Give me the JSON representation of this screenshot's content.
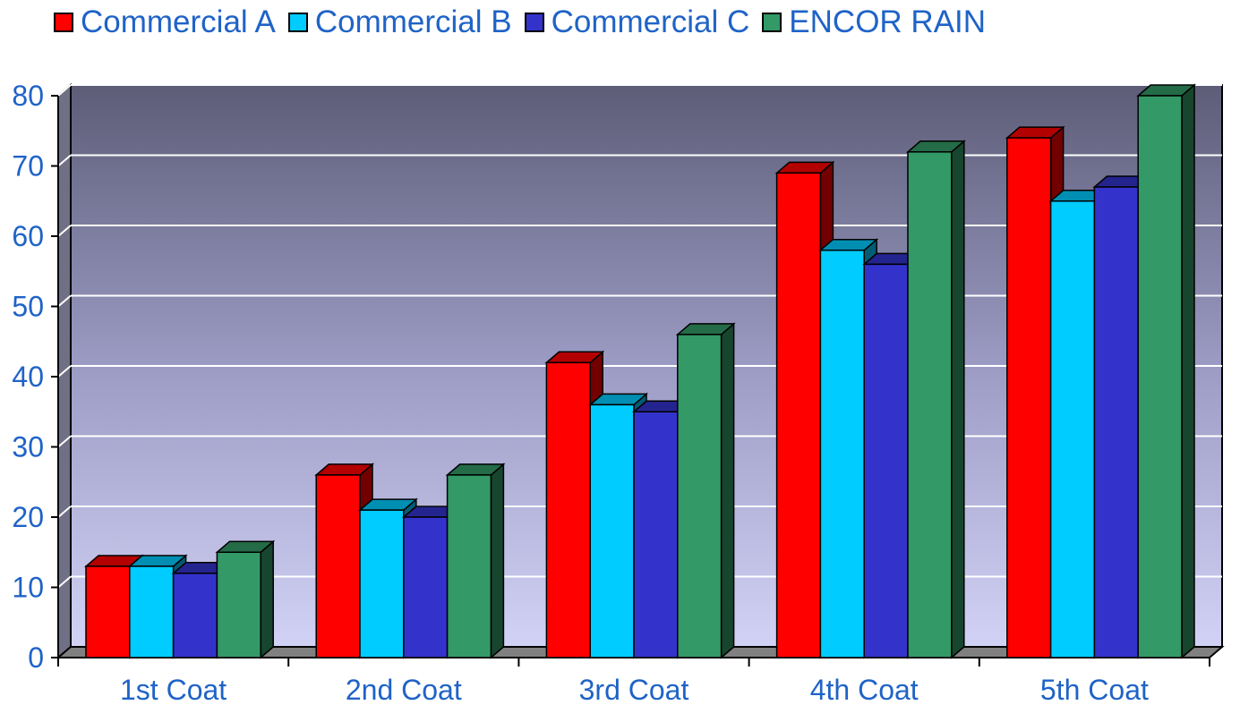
{
  "chart_data": {
    "type": "bar",
    "categories": [
      "1st Coat",
      "2nd Coat",
      "3rd Coat",
      "4th Coat",
      "5th Coat"
    ],
    "series": [
      {
        "name": "Commercial A",
        "color": "#ff0000",
        "values": [
          13,
          26,
          42,
          69,
          74
        ]
      },
      {
        "name": "Commercial B",
        "color": "#00ccff",
        "values": [
          13,
          21,
          36,
          58,
          65
        ]
      },
      {
        "name": "Commercial C",
        "color": "#3333cc",
        "values": [
          12,
          20,
          35,
          56,
          67
        ]
      },
      {
        "name": "ENCOR RAIN",
        "color": "#339966",
        "values": [
          15,
          26,
          46,
          72,
          80
        ]
      }
    ],
    "ylim": [
      0,
      80
    ],
    "yticks": [
      0,
      10,
      20,
      30,
      40,
      50,
      60,
      70,
      80
    ],
    "grid": true,
    "legend_position": "top",
    "title": "",
    "xlabel": "",
    "ylabel": ""
  }
}
